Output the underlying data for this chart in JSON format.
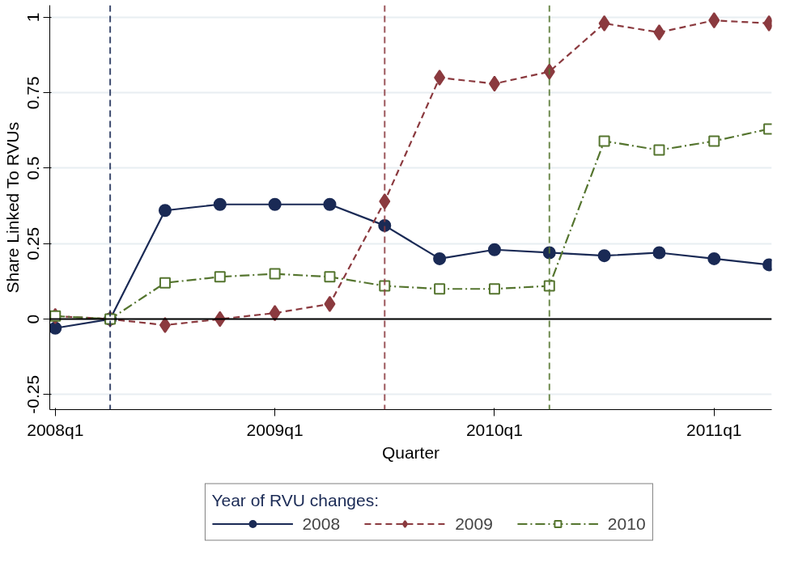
{
  "chart_data": {
    "type": "line",
    "xlabel": "Quarter",
    "ylabel": "Share Linked To RVUs",
    "legend_title": "Year of RVU changes:",
    "categories": [
      "2008q1",
      null,
      null,
      null,
      "2009q1",
      null,
      null,
      null,
      "2010q1",
      null,
      null,
      null,
      "2011q1",
      null
    ],
    "ylim": [
      -0.3,
      1.04
    ],
    "yticks": [
      {
        "value": -0.25,
        "label": "-0.25"
      },
      {
        "value": 0,
        "label": "0"
      },
      {
        "value": 0.25,
        "label": "0.25"
      },
      {
        "value": 0.5,
        "label": "0.5"
      },
      {
        "value": 0.75,
        "label": "0.75"
      },
      {
        "value": 1,
        "label": "1"
      }
    ],
    "grid": "y",
    "legend": "bottom",
    "series": [
      {
        "name": "2008",
        "color": "#1a2a55",
        "marker": "circle",
        "line_style": "solid",
        "values": [
          -0.03,
          0,
          0.36,
          0.38,
          0.38,
          0.38,
          0.31,
          0.2,
          0.23,
          0.22,
          0.21,
          0.22,
          0.2,
          0.18
        ]
      },
      {
        "name": "2009",
        "color": "#8b3a3f",
        "marker": "diamond",
        "line_style": "dashed",
        "values": [
          0.01,
          0,
          -0.02,
          0,
          0.02,
          0.05,
          0.39,
          0.8,
          0.78,
          0.82,
          0.98,
          0.95,
          0.99,
          0.98
        ]
      },
      {
        "name": "2010",
        "color": "#55752f",
        "marker": "square",
        "line_style": "dashdot",
        "values": [
          0.01,
          0,
          0.12,
          0.14,
          0.15,
          0.14,
          0.11,
          0.1,
          0.1,
          0.11,
          0.59,
          0.56,
          0.59,
          0.63
        ]
      }
    ],
    "ref_lines": [
      {
        "axis": "y",
        "value": 0,
        "color": "#000000",
        "line_style": "solid"
      }
    ]
  }
}
